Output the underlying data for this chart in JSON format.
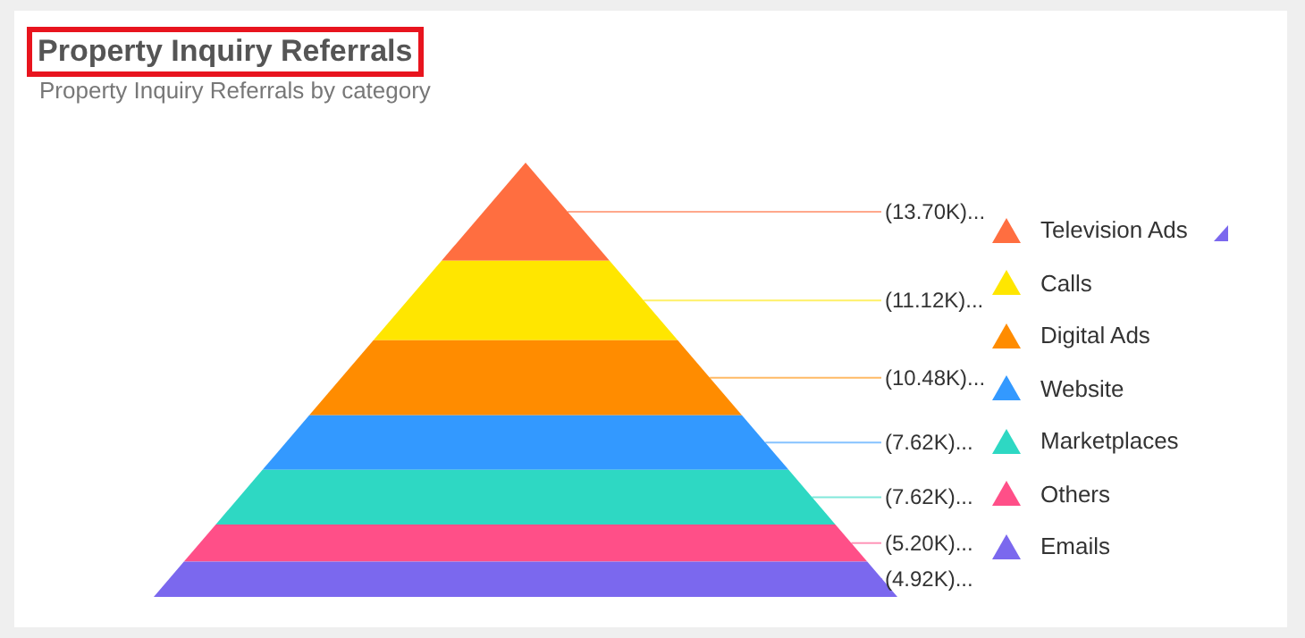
{
  "chart_data": {
    "type": "other",
    "title": "Property Inquiry Referrals",
    "subtitle": "Property Inquiry Referrals by category",
    "categories": [
      "Television Ads",
      "Calls",
      "Digital Ads",
      "Website",
      "Marketplaces",
      "Others",
      "Emails"
    ],
    "values": [
      13700,
      11120,
      10480,
      7620,
      7620,
      5200,
      4920
    ],
    "value_labels": [
      "(13.70K)...",
      "(11.12K)...",
      "(10.48K)...",
      "(7.62K)...",
      "(7.62K)...",
      "(5.20K)...",
      "(4.92K)..."
    ],
    "colors": [
      "#ff6e40",
      "#ffe600",
      "#ff8c00",
      "#3399ff",
      "#2ed8c3",
      "#ff4f88",
      "#7b68ee"
    ]
  }
}
